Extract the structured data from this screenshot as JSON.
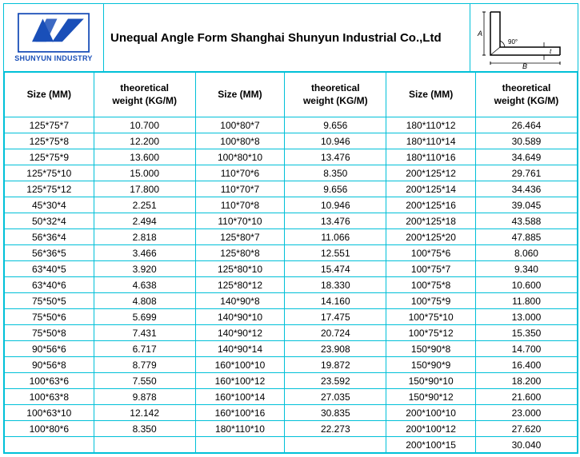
{
  "company": {
    "logo_text": "SHUNYUN INDUSTRY",
    "title": "Unequal Angle Form Shanghai Shunyun Industrial Co.,Ltd",
    "logo_color": "#1a4fb8",
    "logo_bg": "#ffffff"
  },
  "diagram": {
    "angle_label": "90°",
    "dim_A": "A",
    "dim_B": "B",
    "dim_t": "t"
  },
  "table": {
    "border_color": "#00c0d8",
    "header_size": "Size  (MM)",
    "header_weight_top": "theoretical",
    "header_weight_bottom": "weight (KG/M)",
    "rows": [
      [
        "125*75*7",
        "10.700",
        "100*80*7",
        "9.656",
        "180*110*12",
        "26.464"
      ],
      [
        "125*75*8",
        "12.200",
        "100*80*8",
        "10.946",
        "180*110*14",
        "30.589"
      ],
      [
        "125*75*9",
        "13.600",
        "100*80*10",
        "13.476",
        "180*110*16",
        "34.649"
      ],
      [
        "125*75*10",
        "15.000",
        "110*70*6",
        "8.350",
        "200*125*12",
        "29.761"
      ],
      [
        "125*75*12",
        "17.800",
        "110*70*7",
        "9.656",
        "200*125*14",
        "34.436"
      ],
      [
        "45*30*4",
        "2.251",
        "110*70*8",
        "10.946",
        "200*125*16",
        "39.045"
      ],
      [
        "50*32*4",
        "2.494",
        "110*70*10",
        "13.476",
        "200*125*18",
        "43.588"
      ],
      [
        "56*36*4",
        "2.818",
        "125*80*7",
        "11.066",
        "200*125*20",
        "47.885"
      ],
      [
        "56*36*5",
        "3.466",
        "125*80*8",
        "12.551",
        "100*75*6",
        "8.060"
      ],
      [
        "63*40*5",
        "3.920",
        "125*80*10",
        "15.474",
        "100*75*7",
        "9.340"
      ],
      [
        "63*40*6",
        "4.638",
        "125*80*12",
        "18.330",
        "100*75*8",
        "10.600"
      ],
      [
        "75*50*5",
        "4.808",
        "140*90*8",
        "14.160",
        "100*75*9",
        "11.800"
      ],
      [
        "75*50*6",
        "5.699",
        "140*90*10",
        "17.475",
        "100*75*10",
        "13.000"
      ],
      [
        "75*50*8",
        "7.431",
        "140*90*12",
        "20.724",
        "100*75*12",
        "15.350"
      ],
      [
        "90*56*6",
        "6.717",
        "140*90*14",
        "23.908",
        "150*90*8",
        "14.700"
      ],
      [
        "90*56*8",
        "8.779",
        "160*100*10",
        "19.872",
        "150*90*9",
        "16.400"
      ],
      [
        "100*63*6",
        "7.550",
        "160*100*12",
        "23.592",
        "150*90*10",
        "18.200"
      ],
      [
        "100*63*8",
        "9.878",
        "160*100*14",
        "27.035",
        "150*90*12",
        "21.600"
      ],
      [
        "100*63*10",
        "12.142",
        "160*100*16",
        "30.835",
        "200*100*10",
        "23.000"
      ],
      [
        "100*80*6",
        "8.350",
        "180*110*10",
        "22.273",
        "200*100*12",
        "27.620"
      ],
      [
        "",
        "",
        "",
        "",
        "200*100*15",
        "30.040"
      ]
    ]
  }
}
